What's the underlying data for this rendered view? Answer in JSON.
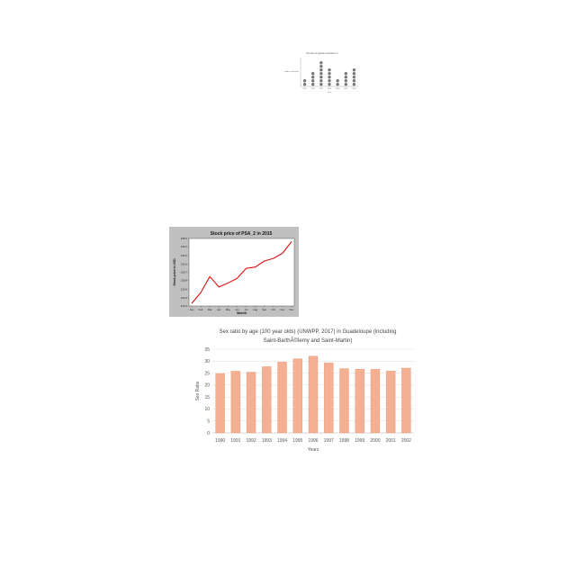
{
  "chart_data": [
    {
      "type": "scatter",
      "style": "dot-plot",
      "title": "Dot plot of people counted in it",
      "xlabel": "Year",
      "ylabel": "Number of people",
      "categories": [
        "2010",
        "2011",
        "2012",
        "2013",
        "2014",
        "2015",
        "2016"
      ],
      "values": [
        2,
        4,
        7,
        5,
        2,
        4,
        5
      ],
      "ylim": [
        0,
        8
      ],
      "dot_color": "#777777"
    },
    {
      "type": "line",
      "title": "Stock price of PSA_2 in 2015",
      "xlabel": "Month",
      "ylabel": "Stock price in USD",
      "categories": [
        "Jan",
        "Feb",
        "Mar",
        "Apr",
        "May",
        "Jun",
        "Jul",
        "Aug",
        "Sep",
        "Oct",
        "Nov",
        "Dec"
      ],
      "values": [
        223.5,
        226.0,
        229.7,
        227.3,
        228.2,
        229.3,
        231.6,
        231.9,
        233.3,
        233.9,
        235.1,
        237.8
      ],
      "ylim": [
        222.9,
        238.5
      ],
      "yticks": [
        "222.9",
        "224.8",
        "226.8",
        "228.8",
        "230.7",
        "232.6",
        "234.6",
        "236.6",
        "238.5"
      ],
      "line_color": "#dd1111",
      "background_color": "#c0c0c0",
      "grid": false
    },
    {
      "type": "bar",
      "title": "Sex ratio by age (100 year olds) (UNWPP, 2017) in Guadeloupe (including Saint-BarthÃ©lemy and Saint-Martin)",
      "xlabel": "Years",
      "ylabel": "Sex Ratio",
      "categories": [
        "1990",
        "1991",
        "1992",
        "1993",
        "1994",
        "1995",
        "1996",
        "1997",
        "1998",
        "1999",
        "2000",
        "2001",
        "2002"
      ],
      "values": [
        24.8,
        25.8,
        25.4,
        27.7,
        29.6,
        31.0,
        32.1,
        29.3,
        26.9,
        26.6,
        26.6,
        25.9,
        27.1
      ],
      "ylim": [
        0,
        35
      ],
      "yticks": [
        "0",
        "5",
        "10",
        "15",
        "20",
        "25",
        "30",
        "35"
      ],
      "grid": true,
      "bar_color": "#f3b092",
      "bar_edge_color": "#e79a79"
    }
  ]
}
